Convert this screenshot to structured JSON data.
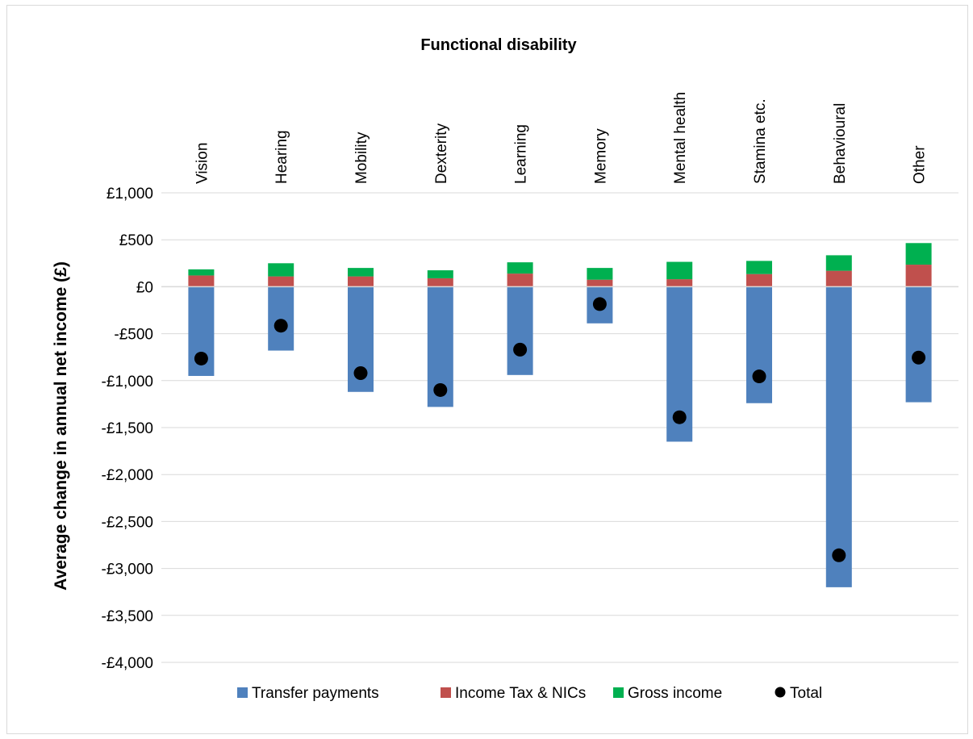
{
  "chart_data": {
    "type": "bar",
    "stacked": true,
    "title": "Functional disability",
    "xlabel": "",
    "ylabel": "Average change in annual net income (£)",
    "categories": [
      "Vision",
      "Hearing",
      "Mobility",
      "Dexterity",
      "Learning",
      "Memory",
      "Mental health",
      "Stamina etc.",
      "Behavioural",
      "Other"
    ],
    "ylim": [
      -4000,
      1000
    ],
    "yticks": [
      1000,
      500,
      0,
      -500,
      -1000,
      -1500,
      -2000,
      -2500,
      -3000,
      -3500,
      -4000
    ],
    "ytick_labels": [
      "£1,000",
      "£500",
      "£0",
      "-£500",
      "-£1,000",
      "-£1,500",
      "-£2,000",
      "-£2,500",
      "-£3,000",
      "-£3,500",
      "-£4,000"
    ],
    "grid": true,
    "legend_position": "bottom",
    "series": [
      {
        "name": "Transfer payments",
        "color": "#4f81bd",
        "kind": "bar",
        "values": [
          -950,
          -680,
          -1120,
          -1280,
          -940,
          -390,
          -1650,
          -1240,
          -3200,
          -1230
        ]
      },
      {
        "name": "Income Tax & NICs",
        "color": "#c0504d",
        "kind": "bar",
        "values": [
          120,
          110,
          110,
          90,
          140,
          75,
          80,
          135,
          170,
          235
        ]
      },
      {
        "name": "Gross income",
        "color": "#00b050",
        "kind": "bar",
        "values": [
          65,
          140,
          90,
          85,
          120,
          125,
          185,
          140,
          165,
          230
        ]
      },
      {
        "name": "Total",
        "color": "#000000",
        "kind": "marker",
        "values": [
          -765,
          -415,
          -920,
          -1100,
          -670,
          -185,
          -1390,
          -955,
          -2860,
          -755
        ]
      }
    ]
  }
}
